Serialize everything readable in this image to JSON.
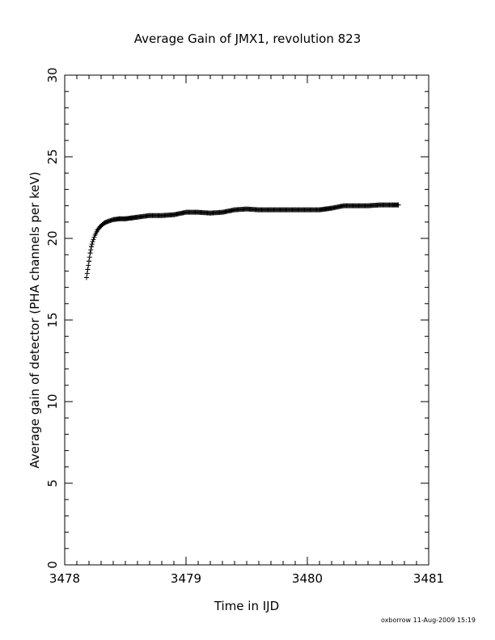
{
  "chart_data": {
    "type": "scatter",
    "title": "Average Gain of JMX1, revolution 823",
    "xlabel": "Time in IJD",
    "ylabel": "Average gain of detector (PHA channels per keV)",
    "xlim": [
      3478,
      3481
    ],
    "ylim": [
      0,
      30
    ],
    "xticks": [
      "3478",
      "3479",
      "3480",
      "3481"
    ],
    "yticks": [
      "0",
      "5",
      "10",
      "15",
      "20",
      "25",
      "30"
    ],
    "marker": "plus",
    "grid": false,
    "legend": "none",
    "color": "#000000",
    "series": [
      {
        "x": [
          3478.18,
          3478.19,
          3478.2,
          3478.21,
          3478.22,
          3478.23,
          3478.25,
          3478.27,
          3478.29,
          3478.31,
          3478.33,
          3478.36,
          3478.4,
          3478.45,
          3478.5,
          3478.55,
          3478.6,
          3478.7,
          3478.8,
          3478.9,
          3479.0,
          3479.1,
          3479.2,
          3479.3,
          3479.4,
          3479.5,
          3479.6,
          3479.7,
          3479.8,
          3479.9,
          3480.0,
          3480.1,
          3480.15,
          3480.2,
          3480.3,
          3480.4,
          3480.5,
          3480.6,
          3480.7,
          3480.75
        ],
        "y": [
          17.6,
          18.1,
          18.6,
          19.1,
          19.5,
          19.8,
          20.2,
          20.5,
          20.7,
          20.85,
          20.95,
          21.05,
          21.15,
          21.2,
          21.2,
          21.25,
          21.3,
          21.4,
          21.4,
          21.45,
          21.6,
          21.6,
          21.55,
          21.6,
          21.75,
          21.8,
          21.75,
          21.75,
          21.75,
          21.75,
          21.75,
          21.75,
          21.8,
          21.85,
          22.0,
          22.0,
          22.0,
          22.05,
          22.05,
          22.05
        ]
      }
    ]
  },
  "footer": {
    "credit": "oxborrow 11-Aug-2009 15:19"
  }
}
